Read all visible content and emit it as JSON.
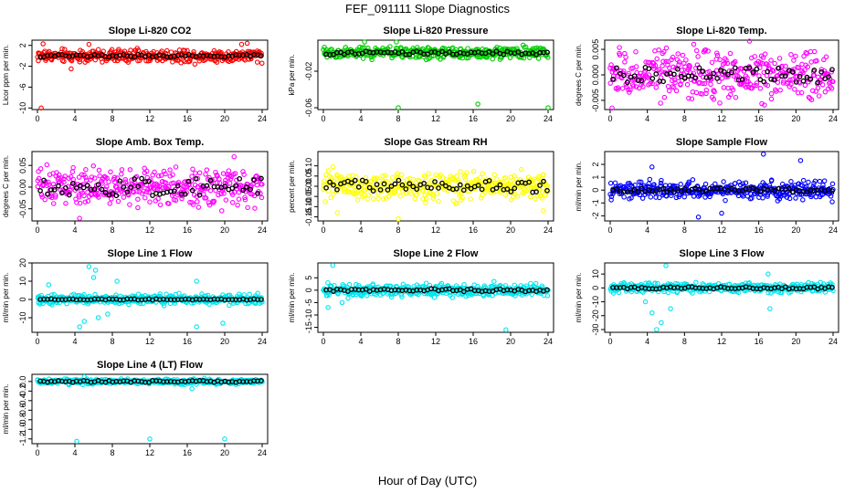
{
  "figure": {
    "title": "FEF_091111  Slope Diagnostics",
    "xlabel": "Hour of Day (UTC)"
  },
  "chart_data": [
    {
      "type": "scatter",
      "title": "Slope Li-820 CO2",
      "ylabel": "Licor ppm per min.",
      "color": "#ff0000",
      "xlim": [
        0,
        24
      ],
      "ylim": [
        -10.3,
        3
      ],
      "xticks": [
        "0",
        "4",
        "8",
        "12",
        "16",
        "20",
        "24"
      ],
      "yticks": [
        {
          "v": 2,
          "label": "2"
        },
        {
          "v": -2,
          "label": "-2"
        },
        {
          "v": -6,
          "label": "-6"
        },
        {
          "v": -10,
          "label": "-10"
        }
      ],
      "spread": 0.9,
      "means_spread": 0.25,
      "outliers": [
        {
          "x": 0.4,
          "y": -10
        },
        {
          "x": 3.6,
          "y": -2.5
        },
        {
          "x": 0.6,
          "y": 2.3
        },
        {
          "x": 5.5,
          "y": 2.2
        },
        {
          "x": 21.8,
          "y": 2.2
        },
        {
          "x": 22.4,
          "y": 2.4
        }
      ]
    },
    {
      "type": "scatter",
      "title": "Slope Li-820 Pressure",
      "ylabel": "kPa per min.",
      "color": "#00cc00",
      "xlim": [
        0,
        24
      ],
      "ylim": [
        -0.062,
        0.014
      ],
      "xticks": [
        "0",
        "4",
        "8",
        "12",
        "16",
        "20",
        "24"
      ],
      "yticks": [
        {
          "v": -0.02,
          "label": "-0.02"
        },
        {
          "v": -0.06,
          "label": "-0.06"
        }
      ],
      "spread": 0.005,
      "means_spread": 0.002,
      "outliers": [
        {
          "x": 8,
          "y": -0.06
        },
        {
          "x": 16.5,
          "y": -0.056
        },
        {
          "x": 24,
          "y": -0.06
        },
        {
          "x": 4.4,
          "y": 0.012
        },
        {
          "x": 7.8,
          "y": 0.012
        }
      ]
    },
    {
      "type": "scatter",
      "title": "Slope Li-820 Temp.",
      "ylabel": "degrees C per min.",
      "color": "#ff00ff",
      "xlim": [
        0,
        24
      ],
      "ylim": [
        -0.0068,
        0.0068
      ],
      "xticks": [
        "0",
        "4",
        "8",
        "12",
        "16",
        "20",
        "24"
      ],
      "yticks": [
        {
          "v": 0.005,
          "label": "0.005"
        },
        {
          "v": 0,
          "label": "0.000"
        },
        {
          "v": -0.005,
          "label": "-0.005"
        }
      ],
      "spread": 0.0035,
      "means_spread": 0.0015,
      "outliers": [
        {
          "x": 15,
          "y": 0.0066
        },
        {
          "x": 0.2,
          "y": -0.0065
        },
        {
          "x": 9,
          "y": 0.006
        }
      ]
    },
    {
      "type": "scatter",
      "title": "Slope Amb. Box Temp.",
      "ylabel": "degrees C per min.",
      "color": "#ff00ff",
      "xlim": [
        0,
        24
      ],
      "ylim": [
        -0.078,
        0.082
      ],
      "xticks": [
        "0",
        "4",
        "8",
        "12",
        "16",
        "20",
        "24"
      ],
      "yticks": [
        {
          "v": 0.05,
          "label": "0.05"
        },
        {
          "v": 0,
          "label": "0.00"
        },
        {
          "v": -0.05,
          "label": "-0.05"
        }
      ],
      "spread": 0.03,
      "means_spread": 0.02,
      "outliers": [
        {
          "x": 4.5,
          "y": -0.072
        },
        {
          "x": 21,
          "y": 0.07
        }
      ]
    },
    {
      "type": "scatter",
      "title": "Slope Gas Stream RH",
      "ylabel": "percent per min.",
      "color": "#ffff00",
      "xlim": [
        0,
        24
      ],
      "ylim": [
        -0.17,
        0.17
      ],
      "xticks": [
        "0",
        "4",
        "8",
        "12",
        "16",
        "20",
        "24"
      ],
      "yticks": [
        {
          "v": 0.1,
          "label": "0.10"
        },
        {
          "v": 0.05,
          "label": "0.05"
        },
        {
          "v": 0,
          "label": "0.00"
        },
        {
          "v": -0.05,
          "label": "-0.05"
        },
        {
          "v": -0.1,
          "label": "-0.10"
        },
        {
          "v": -0.15,
          "label": "-0.15"
        }
      ],
      "spread": 0.05,
      "means_spread": 0.03,
      "outliers": [
        {
          "x": 1.5,
          "y": -0.13
        },
        {
          "x": 8,
          "y": -0.16
        },
        {
          "x": 23.5,
          "y": -0.12
        }
      ]
    },
    {
      "type": "scatter",
      "title": "Slope Sample Flow",
      "ylabel": "ml/min per min.",
      "color": "#0000ff",
      "xlim": [
        0,
        24
      ],
      "ylim": [
        -2.4,
        3
      ],
      "xticks": [
        "0",
        "4",
        "8",
        "12",
        "16",
        "20",
        "24"
      ],
      "yticks": [
        {
          "v": 2,
          "label": "2"
        },
        {
          "v": 1,
          "label": "1"
        },
        {
          "v": 0,
          "label": "0"
        },
        {
          "v": -1,
          "label": "-1"
        },
        {
          "v": -2,
          "label": "-2"
        }
      ],
      "spread": 0.5,
      "means_spread": 0.15,
      "outliers": [
        {
          "x": 16.5,
          "y": 2.8
        },
        {
          "x": 20.5,
          "y": 2.3
        },
        {
          "x": 9.5,
          "y": -2.1
        },
        {
          "x": 12,
          "y": -1.8
        },
        {
          "x": 4.5,
          "y": 1.8
        }
      ]
    },
    {
      "type": "scatter",
      "title": "Slope Line 1 Flow",
      "ylabel": "ml/min per min.",
      "color": "#00e5ee",
      "xlim": [
        0,
        24
      ],
      "ylim": [
        -18,
        20
      ],
      "xticks": [
        "0",
        "4",
        "8",
        "12",
        "16",
        "20",
        "24"
      ],
      "yticks": [
        {
          "v": 20,
          "label": "20"
        },
        {
          "v": 10,
          "label": "10"
        },
        {
          "v": 0,
          "label": "0"
        },
        {
          "v": -10,
          "label": "-10"
        }
      ],
      "spread": 2,
      "means_spread": 0.3,
      "outliers": [
        {
          "x": 5.5,
          "y": 18
        },
        {
          "x": 6.2,
          "y": 16
        },
        {
          "x": 5,
          "y": -12
        },
        {
          "x": 6.5,
          "y": -10
        },
        {
          "x": 7.5,
          "y": -8
        },
        {
          "x": 8.5,
          "y": 10
        },
        {
          "x": 4.5,
          "y": -15
        },
        {
          "x": 17,
          "y": -15
        },
        {
          "x": 19.8,
          "y": -13
        },
        {
          "x": 6,
          "y": 12
        },
        {
          "x": 17,
          "y": 10
        },
        {
          "x": 1.2,
          "y": 8
        }
      ]
    },
    {
      "type": "scatter",
      "title": "Slope Line 2 Flow",
      "ylabel": "ml/min per min.",
      "color": "#00e5ee",
      "xlim": [
        0,
        24
      ],
      "ylim": [
        -17,
        11
      ],
      "xticks": [
        "0",
        "4",
        "8",
        "12",
        "16",
        "20",
        "24"
      ],
      "yticks": [
        {
          "v": 5,
          "label": "5"
        },
        {
          "v": 0,
          "label": "0"
        },
        {
          "v": -5,
          "label": "-5"
        },
        {
          "v": -10,
          "label": "-10"
        },
        {
          "v": -15,
          "label": "-15"
        }
      ],
      "spread": 1.8,
      "means_spread": 0.6,
      "outliers": [
        {
          "x": 1,
          "y": 10
        },
        {
          "x": 19.5,
          "y": -16
        },
        {
          "x": 0.5,
          "y": -7
        },
        {
          "x": 2,
          "y": -5
        }
      ]
    },
    {
      "type": "scatter",
      "title": "Slope Line 3 Flow",
      "ylabel": "ml/min per min.",
      "color": "#00e5ee",
      "xlim": [
        0,
        24
      ],
      "ylim": [
        -32,
        18
      ],
      "xticks": [
        "0",
        "4",
        "8",
        "12",
        "16",
        "20",
        "24"
      ],
      "yticks": [
        {
          "v": 10,
          "label": "10"
        },
        {
          "v": 0,
          "label": "0"
        },
        {
          "v": -10,
          "label": "-10"
        },
        {
          "v": -20,
          "label": "-20"
        },
        {
          "v": -30,
          "label": "-30"
        }
      ],
      "spread": 2.5,
      "means_spread": 0.8,
      "outliers": [
        {
          "x": 5,
          "y": -30
        },
        {
          "x": 5.5,
          "y": -25
        },
        {
          "x": 4.5,
          "y": -18
        },
        {
          "x": 6.5,
          "y": -15
        },
        {
          "x": 6,
          "y": 16
        },
        {
          "x": 17,
          "y": 10
        },
        {
          "x": 17.2,
          "y": -15
        },
        {
          "x": 3.8,
          "y": -10
        }
      ]
    },
    {
      "type": "scatter",
      "title": "Slope Line 4 (LT) Flow",
      "ylabel": "ml/min per min.",
      "color": "#00e5ee",
      "xlim": [
        0,
        24
      ],
      "ylim": [
        -1.3,
        0.15
      ],
      "xticks": [
        "0",
        "4",
        "8",
        "12",
        "16",
        "20",
        "24"
      ],
      "yticks": [
        {
          "v": 0,
          "label": "0.0"
        },
        {
          "v": -0.2,
          "label": "-0.2"
        },
        {
          "v": -0.4,
          "label": "-0.4"
        },
        {
          "v": -0.6,
          "label": "-0.6"
        },
        {
          "v": -0.8,
          "label": "-0.8"
        },
        {
          "v": -1,
          "label": "-1.0"
        },
        {
          "v": -1.2,
          "label": "-1.2"
        }
      ],
      "spread": 0.04,
      "means_spread": 0.02,
      "outliers": [
        {
          "x": 4.2,
          "y": -1.25
        },
        {
          "x": 12,
          "y": -1.2
        },
        {
          "x": 20,
          "y": -1.2
        },
        {
          "x": 16.5,
          "y": -0.15
        },
        {
          "x": 5,
          "y": 0.1
        }
      ]
    }
  ]
}
